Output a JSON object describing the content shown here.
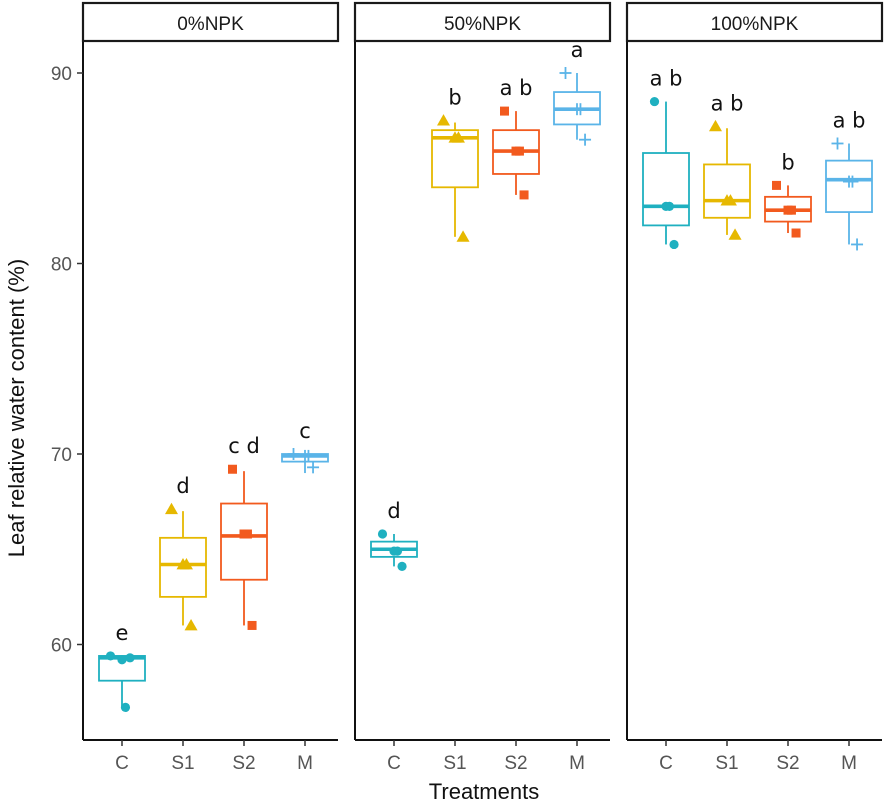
{
  "chart_data": {
    "type": "box",
    "facet_variable": "fertilizer",
    "facets": [
      "0%NPK",
      "50%NPK",
      "100%NPK"
    ],
    "categories": [
      "C",
      "S1",
      "S2",
      "M"
    ],
    "xlabel": "Treatments",
    "ylabel": "Leaf relative water content (%)",
    "ylim": [
      55,
      92
    ],
    "yticks": [
      60,
      70,
      80,
      90
    ],
    "ytick_labels": [
      "60",
      "70",
      "80",
      "90"
    ],
    "grid": false,
    "legend": "none",
    "series_colors": {
      "C": "#1fb0c0",
      "S1": "#e6b800",
      "S2": "#f25a1e",
      "M": "#5ab4e8"
    },
    "point_shapes": {
      "C": "circle",
      "S1": "triangle",
      "S2": "square",
      "M": "plus"
    },
    "groups": [
      {
        "facet": "0%NPK",
        "treatment": "C",
        "min": 56.7,
        "q1": 58.1,
        "median": 59.3,
        "q3": 59.4,
        "max": 59.4,
        "mean": 59.2,
        "points": [
          59.4,
          59.3,
          56.7
        ],
        "letter": "e"
      },
      {
        "facet": "0%NPK",
        "treatment": "S1",
        "min": 61.0,
        "q1": 62.5,
        "median": 64.2,
        "q3": 65.6,
        "max": 67.0,
        "mean": 64.2,
        "points": [
          67.1,
          61.0,
          64.2
        ],
        "letter": "d"
      },
      {
        "facet": "0%NPK",
        "treatment": "S2",
        "min": 61.0,
        "q1": 63.4,
        "median": 65.7,
        "q3": 67.4,
        "max": 69.1,
        "mean": 65.8,
        "points": [
          69.2,
          61.0,
          65.8
        ],
        "letter": "c d"
      },
      {
        "facet": "0%NPK",
        "treatment": "M",
        "min": 69.0,
        "q1": 69.6,
        "median": 69.9,
        "q3": 70.0,
        "max": 70.0,
        "mean": 69.9,
        "points": [
          70.0,
          69.3,
          69.9
        ],
        "letter": "c"
      },
      {
        "facet": "50%NPK",
        "treatment": "C",
        "min": 64.1,
        "q1": 64.6,
        "median": 65.0,
        "q3": 65.4,
        "max": 65.8,
        "mean": 64.9,
        "points": [
          65.8,
          64.1,
          64.9
        ],
        "letter": "d"
      },
      {
        "facet": "50%NPK",
        "treatment": "S1",
        "min": 81.4,
        "q1": 84.0,
        "median": 86.6,
        "q3": 87.0,
        "max": 87.4,
        "mean": 86.6,
        "points": [
          87.5,
          81.4,
          86.6
        ],
        "letter": "b"
      },
      {
        "facet": "50%NPK",
        "treatment": "S2",
        "min": 83.6,
        "q1": 84.7,
        "median": 85.9,
        "q3": 87.0,
        "max": 88.0,
        "mean": 85.9,
        "points": [
          88.0,
          83.6,
          85.9
        ],
        "letter": "a b"
      },
      {
        "facet": "50%NPK",
        "treatment": "M",
        "min": 86.5,
        "q1": 87.3,
        "median": 88.1,
        "q3": 89.0,
        "max": 90.0,
        "mean": 88.1,
        "points": [
          90.0,
          86.5,
          88.1
        ],
        "letter": "a"
      },
      {
        "facet": "100%NPK",
        "treatment": "C",
        "min": 81.0,
        "q1": 82.0,
        "median": 83.0,
        "q3": 85.8,
        "max": 88.5,
        "mean": 83.0,
        "points": [
          88.5,
          81.0,
          83.0
        ],
        "letter": "a b"
      },
      {
        "facet": "100%NPK",
        "treatment": "S1",
        "min": 81.5,
        "q1": 82.4,
        "median": 83.3,
        "q3": 85.2,
        "max": 87.1,
        "mean": 83.3,
        "points": [
          87.2,
          81.5,
          83.3
        ],
        "letter": "a b"
      },
      {
        "facet": "100%NPK",
        "treatment": "S2",
        "min": 81.6,
        "q1": 82.2,
        "median": 82.8,
        "q3": 83.5,
        "max": 84.1,
        "mean": 82.8,
        "points": [
          84.1,
          81.6,
          82.8
        ],
        "letter": "b"
      },
      {
        "facet": "100%NPK",
        "treatment": "M",
        "min": 81.0,
        "q1": 82.7,
        "median": 84.4,
        "q3": 85.4,
        "max": 86.3,
        "mean": 84.3,
        "points": [
          86.3,
          81.0,
          84.3
        ],
        "letter": "a b"
      }
    ]
  }
}
